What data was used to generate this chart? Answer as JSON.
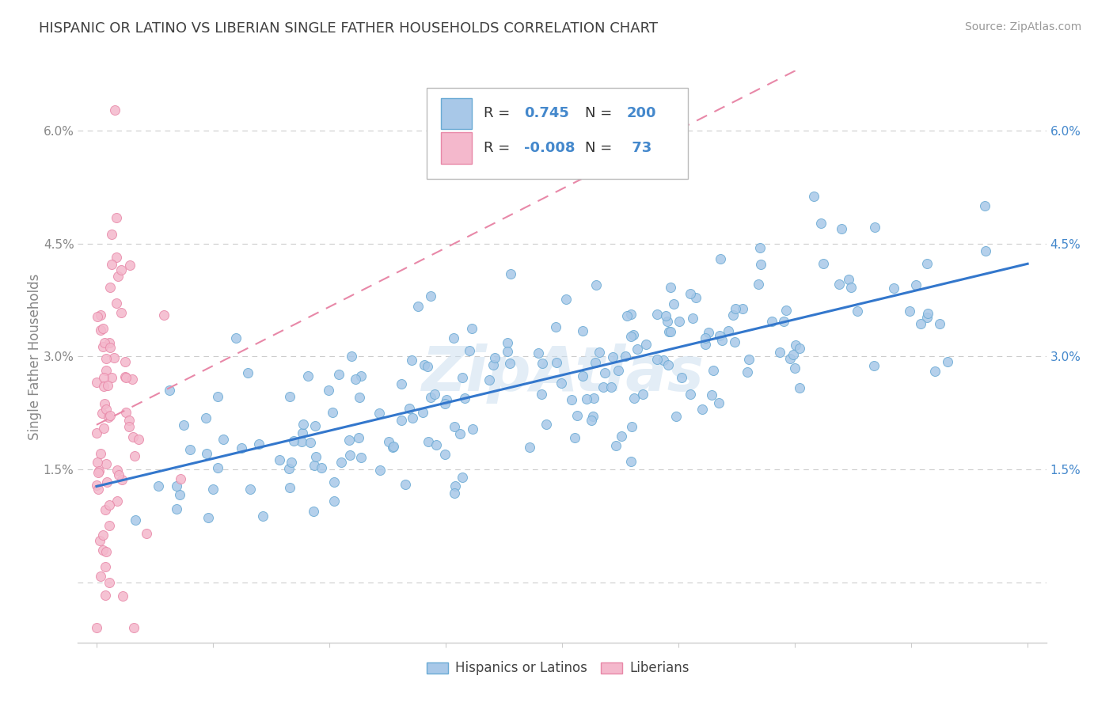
{
  "title": "HISPANIC OR LATINO VS LIBERIAN SINGLE FATHER HOUSEHOLDS CORRELATION CHART",
  "source_text": "Source: ZipAtlas.com",
  "ylabel": "Single Father Households",
  "yticks": [
    0.0,
    0.015,
    0.03,
    0.045,
    0.06
  ],
  "ytick_labels_left": [
    "",
    "1.5%",
    "3.0%",
    "4.5%",
    "6.0%"
  ],
  "ytick_labels_right": [
    "",
    "1.5%",
    "3.0%",
    "4.5%",
    "6.0%"
  ],
  "xlim": [
    -0.02,
    1.02
  ],
  "ylim": [
    -0.008,
    0.068
  ],
  "blue_R": 0.745,
  "blue_N": 200,
  "pink_R": -0.008,
  "pink_N": 73,
  "blue_dot_color": "#a8c8e8",
  "blue_edge_color": "#6aaad4",
  "pink_dot_color": "#f4b8cc",
  "pink_edge_color": "#e888a8",
  "blue_line_color": "#3377cc",
  "pink_line_color": "#e888a8",
  "legend_label_blue": "Hispanics or Latinos",
  "legend_label_pink": "Liberians",
  "watermark": "ZipAtlas",
  "title_fontsize": 13,
  "title_color": "#404040",
  "background_color": "#ffffff",
  "grid_color": "#cccccc",
  "tick_color": "#888888",
  "right_tick_color": "#4488cc",
  "seed_blue": 42,
  "seed_pink": 7
}
